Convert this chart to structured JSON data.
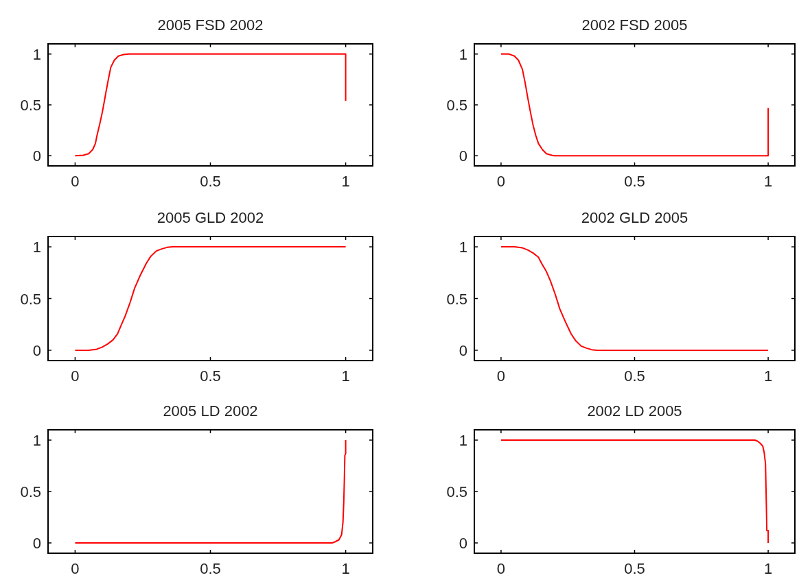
{
  "chart_data": [
    {
      "type": "line",
      "title": "2005 FSD 2002",
      "xlim": [
        -0.1,
        1.1
      ],
      "ylim": [
        -0.1,
        1.1
      ],
      "xticks": [
        0,
        0.5,
        1
      ],
      "yticks": [
        0,
        0.5,
        1
      ],
      "grid": false,
      "series": [
        {
          "color": "#ff0000",
          "x": [
            0,
            0.03,
            0.05,
            0.065,
            0.075,
            0.081,
            0.09,
            0.1,
            0.107,
            0.115,
            0.125,
            0.132,
            0.145,
            0.16,
            0.18,
            0.2,
            1,
            1
          ],
          "values": [
            0,
            0.005,
            0.02,
            0.06,
            0.12,
            0.2,
            0.3,
            0.42,
            0.52,
            0.64,
            0.78,
            0.87,
            0.94,
            0.98,
            0.995,
            1,
            1,
            0.54
          ]
        }
      ]
    },
    {
      "type": "line",
      "title": "2002 FSD 2005",
      "xlim": [
        -0.1,
        1.1
      ],
      "ylim": [
        -0.1,
        1.1
      ],
      "xticks": [
        0,
        0.5,
        1
      ],
      "yticks": [
        0,
        0.5,
        1
      ],
      "grid": false,
      "series": [
        {
          "color": "#ff0000",
          "x": [
            0,
            0.03,
            0.05,
            0.065,
            0.08,
            0.09,
            0.1,
            0.11,
            0.12,
            0.13,
            0.14,
            0.155,
            0.17,
            0.19,
            0.2,
            1,
            1
          ],
          "values": [
            1,
            1,
            0.98,
            0.94,
            0.85,
            0.72,
            0.57,
            0.43,
            0.3,
            0.2,
            0.12,
            0.06,
            0.02,
            0.005,
            0,
            0,
            0.47
          ]
        }
      ]
    },
    {
      "type": "line",
      "title": "2005 GLD 2002",
      "xlim": [
        -0.1,
        1.1
      ],
      "ylim": [
        -0.1,
        1.1
      ],
      "xticks": [
        0,
        0.5,
        1
      ],
      "yticks": [
        0,
        0.5,
        1
      ],
      "grid": false,
      "series": [
        {
          "color": "#ff0000",
          "x": [
            0,
            0.05,
            0.08,
            0.1,
            0.12,
            0.14,
            0.157,
            0.17,
            0.185,
            0.203,
            0.22,
            0.24,
            0.263,
            0.28,
            0.3,
            0.32,
            0.34,
            0.36,
            1
          ],
          "values": [
            0,
            0,
            0.01,
            0.03,
            0.06,
            0.1,
            0.16,
            0.24,
            0.33,
            0.46,
            0.6,
            0.72,
            0.84,
            0.91,
            0.96,
            0.98,
            0.995,
            1,
            1
          ]
        }
      ]
    },
    {
      "type": "line",
      "title": "2002 GLD 2005",
      "xlim": [
        -0.1,
        1.1
      ],
      "ylim": [
        -0.1,
        1.1
      ],
      "xticks": [
        0,
        0.5,
        1
      ],
      "yticks": [
        0,
        0.5,
        1
      ],
      "grid": false,
      "series": [
        {
          "color": "#ff0000",
          "x": [
            0,
            0.05,
            0.08,
            0.1,
            0.12,
            0.14,
            0.152,
            0.17,
            0.185,
            0.203,
            0.22,
            0.24,
            0.262,
            0.28,
            0.3,
            0.32,
            0.34,
            0.36,
            1
          ],
          "values": [
            1,
            1,
            0.99,
            0.97,
            0.94,
            0.9,
            0.84,
            0.76,
            0.67,
            0.54,
            0.4,
            0.28,
            0.16,
            0.09,
            0.04,
            0.02,
            0.005,
            0,
            0
          ]
        }
      ]
    },
    {
      "type": "line",
      "title": "2005 LD 2002",
      "xlim": [
        -0.1,
        1.1
      ],
      "ylim": [
        -0.1,
        1.1
      ],
      "xticks": [
        0,
        0.5,
        1
      ],
      "yticks": [
        0,
        0.5,
        1
      ],
      "grid": false,
      "series": [
        {
          "color": "#ff0000",
          "x": [
            0,
            0.95,
            0.96,
            0.975,
            0.985,
            0.99,
            0.993,
            0.995,
            0.997,
            1,
            1
          ],
          "values": [
            0,
            0,
            0.01,
            0.03,
            0.08,
            0.2,
            0.4,
            0.6,
            0.85,
            0.87,
            1
          ]
        }
      ]
    },
    {
      "type": "line",
      "title": "2002 LD 2005",
      "xlim": [
        -0.1,
        1.1
      ],
      "ylim": [
        -0.1,
        1.1
      ],
      "xticks": [
        0,
        0.5,
        1
      ],
      "yticks": [
        0,
        0.5,
        1
      ],
      "grid": false,
      "series": [
        {
          "color": "#ff0000",
          "x": [
            0,
            0.95,
            0.96,
            0.97,
            0.98,
            0.985,
            0.99,
            0.993,
            0.995,
            1,
            1
          ],
          "values": [
            1,
            1,
            0.99,
            0.97,
            0.94,
            0.88,
            0.77,
            0.4,
            0.12,
            0.12,
            0
          ]
        }
      ]
    }
  ]
}
